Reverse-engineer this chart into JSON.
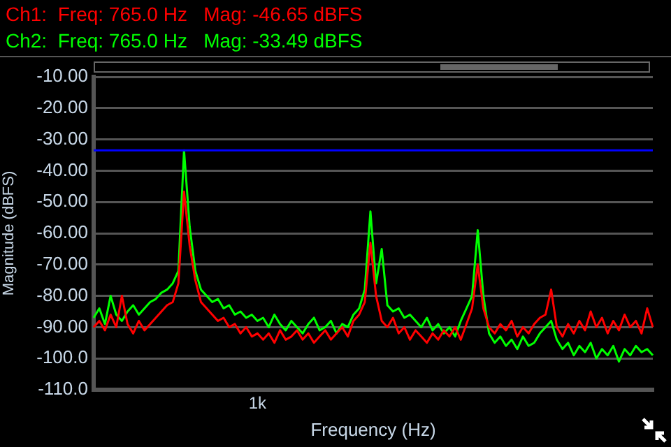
{
  "chart_data": {
    "type": "line",
    "xlabel": "Frequency (Hz)",
    "ylabel": "Magnitude (dBFS)",
    "categories": [
      null,
      null,
      null,
      null,
      null,
      null,
      null,
      null,
      null,
      null,
      null,
      null,
      null,
      null,
      null,
      null,
      null,
      null,
      null,
      null,
      null,
      null,
      null,
      null,
      null,
      null,
      null,
      null,
      null,
      "1k",
      null,
      null,
      null,
      null,
      null,
      null,
      null,
      null,
      null,
      null,
      null,
      null,
      null,
      null,
      null,
      null,
      null,
      null,
      null,
      null,
      null,
      null,
      null,
      null,
      null,
      null,
      null,
      null,
      null,
      null,
      null,
      null,
      null,
      null,
      null,
      null,
      null,
      null,
      null,
      null,
      null,
      null,
      null,
      null,
      null,
      null,
      null,
      null,
      null,
      null,
      null,
      null,
      null,
      null,
      null,
      null,
      null,
      null,
      null,
      null,
      null,
      null,
      null,
      null,
      null,
      null,
      null,
      null,
      null,
      null
    ],
    "series": [
      {
        "name": "Ch1:  Freq: 765.0 Hz   Mag: -46.65 dBFS",
        "color": "#ff0000",
        "values": [
          -90,
          -88,
          -91,
          -86,
          -90,
          -80,
          -89,
          -92,
          -88,
          -91,
          -89,
          -87,
          -85,
          -83,
          -82,
          -76,
          -46.65,
          -64,
          -75,
          -82,
          -84,
          -86,
          -88,
          -87,
          -90,
          -89,
          -92,
          -90,
          -93,
          -92,
          -94,
          -92,
          -95,
          -91,
          -94,
          -93,
          -91,
          -94,
          -92,
          -95,
          -93,
          -91,
          -94,
          -92,
          -90,
          -93,
          -88,
          -86,
          -82,
          -63,
          -80,
          -88,
          -90,
          -87,
          -92,
          -90,
          -94,
          -91,
          -93,
          -95,
          -92,
          -94,
          -91,
          -93,
          -90,
          -94,
          -89,
          -84,
          -70,
          -84,
          -90,
          -92,
          -89,
          -91,
          -88,
          -93,
          -90,
          -92,
          -89,
          -87,
          -86,
          -78,
          -90,
          -93,
          -89,
          -92,
          -88,
          -91,
          -85,
          -90,
          -87,
          -92,
          -88,
          -91,
          -86,
          -90,
          -88,
          -92,
          -84,
          -90
        ]
      },
      {
        "name": "Ch2:  Freq: 765.0 Hz   Mag: -33.49 dBFS",
        "color": "#00ff00",
        "values": [
          -87,
          -84,
          -89,
          -80,
          -86,
          -88,
          -85,
          -83,
          -86,
          -84,
          -82,
          -81,
          -79,
          -78,
          -76,
          -72,
          -33.49,
          -58,
          -72,
          -78,
          -80,
          -82,
          -81,
          -84,
          -83,
          -86,
          -85,
          -87,
          -86,
          -88,
          -87,
          -90,
          -86,
          -89,
          -91,
          -88,
          -90,
          -92,
          -89,
          -87,
          -91,
          -90,
          -88,
          -92,
          -89,
          -90,
          -86,
          -84,
          -78,
          -53,
          -76,
          -65,
          -83,
          -85,
          -84,
          -87,
          -86,
          -88,
          -90,
          -87,
          -91,
          -89,
          -92,
          -90,
          -93,
          -88,
          -84,
          -80,
          -59,
          -80,
          -92,
          -95,
          -93,
          -96,
          -94,
          -97,
          -93,
          -96,
          -95,
          -92,
          -90,
          -88,
          -94,
          -97,
          -95,
          -99,
          -96,
          -98,
          -95,
          -100,
          -97,
          -99,
          -96,
          -101,
          -97,
          -99,
          -96,
          -98,
          -97,
          -99
        ]
      }
    ],
    "ylim": [
      -110,
      -10
    ],
    "yticks": [
      {
        "value": -10,
        "label": "-10.00"
      },
      {
        "value": -20,
        "label": "-20.00"
      },
      {
        "value": -30,
        "label": "-30.00"
      },
      {
        "value": -40,
        "label": "-40.00"
      },
      {
        "value": -50,
        "label": "-50.00"
      },
      {
        "value": -60,
        "label": "-60.00"
      },
      {
        "value": -70,
        "label": "-70.00"
      },
      {
        "value": -80,
        "label": "-80.00"
      },
      {
        "value": -90,
        "label": "-90.00"
      },
      {
        "value": -100,
        "label": "-100.0"
      },
      {
        "value": -110,
        "label": "-110.0"
      }
    ],
    "ref_lines": [
      {
        "axis": "y",
        "value": -33.49,
        "color": "#0000ff"
      }
    ],
    "grid": "y",
    "legend": "top left",
    "marker": "none",
    "line_style": "solid"
  }
}
